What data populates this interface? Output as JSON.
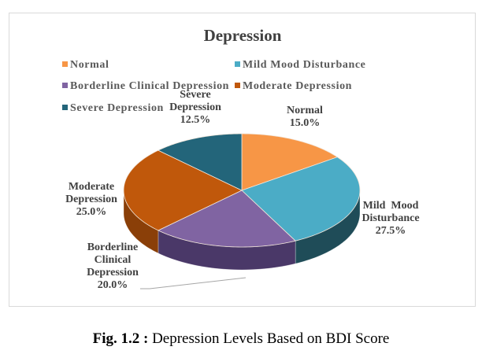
{
  "chart_data": {
    "type": "pie",
    "title": "Depression",
    "categories": [
      "Normal",
      "Mild Mood Disturbance",
      "Borderline Clinical Depression",
      "Moderate Depression",
      "Severe Depression"
    ],
    "values": [
      15.0,
      27.5,
      20.0,
      25.0,
      12.5
    ],
    "value_labels": [
      "15.0%",
      "27.5%",
      "20.0%",
      "25.0%",
      "12.5%"
    ],
    "data_label_lines": [
      [
        "Normal",
        "15.0%"
      ],
      [
        "Mild  Mood",
        "Disturbance",
        "27.5%"
      ],
      [
        "Borderline",
        "Clinical",
        "Depression",
        "20.0%"
      ],
      [
        "Moderate",
        "Depression",
        "25.0%"
      ],
      [
        "Severe",
        "Depression",
        "12.5%"
      ]
    ],
    "colors": [
      "#f79646",
      "#4bacc6",
      "#8064a2",
      "#c0580b",
      "#23657a"
    ],
    "side_colors": [
      "#c96f24",
      "#1f4c58",
      "#4a3868",
      "#8a3f08",
      "#163f4c"
    ],
    "legend": {
      "position": "top",
      "entries": [
        "Normal",
        "Mild Mood Disturbance",
        "Borderline Clinical Depression",
        "Moderate Depression",
        "Severe Depression"
      ]
    },
    "style": "3d-pie"
  },
  "caption": {
    "prefix": "Fig. 1.2 :",
    "text": " Depression Levels Based on BDI Score"
  }
}
